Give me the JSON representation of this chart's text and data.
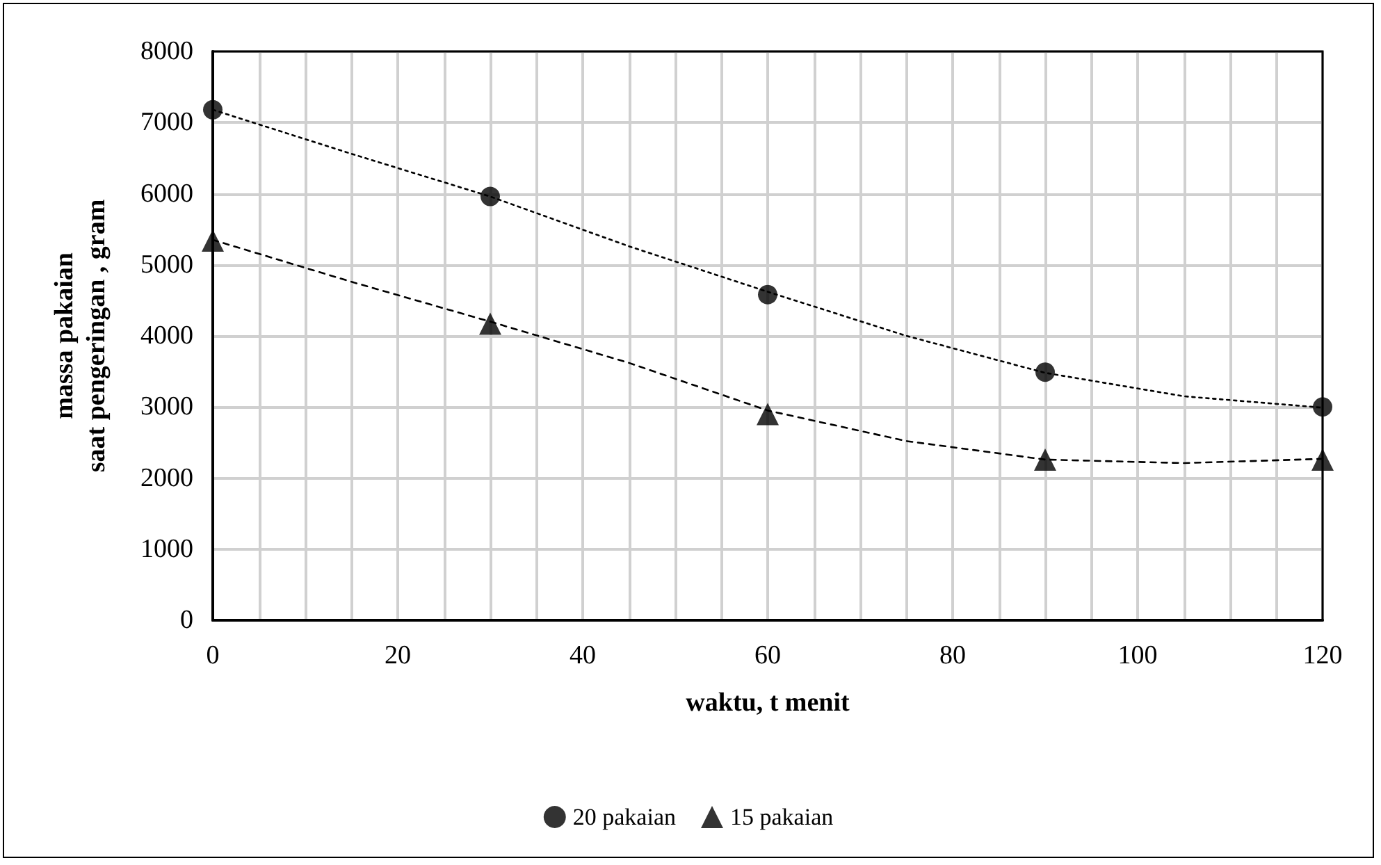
{
  "chart_data": {
    "type": "scatter",
    "xlabel": "waktu, t menit",
    "ylabel": "massa pakaian\nsaat pengeringan , gram",
    "x": [
      0,
      30,
      60,
      90,
      120
    ],
    "series": [
      {
        "name": "20 pakaian",
        "color": "#000000",
        "marker": "circle",
        "values": [
          7180,
          5960,
          4580,
          3490,
          3000
        ]
      },
      {
        "name": "15 pakaian",
        "color": "#000000",
        "marker": "triangle",
        "values": [
          5340,
          4170,
          2900,
          2260,
          2260
        ]
      },
      {
        "type": "line",
        "color": "#000000",
        "line_style": "dotted",
        "marker": "none",
        "x": [
          0,
          15,
          30,
          45,
          60,
          75,
          90,
          105,
          120
        ],
        "values": [
          7180,
          6560,
          5960,
          5260,
          4620,
          4000,
          3480,
          3150,
          2990
        ]
      },
      {
        "type": "line",
        "color": "#000000",
        "line_style": "dashed",
        "marker": "none",
        "x": [
          0,
          15,
          30,
          45,
          60,
          75,
          90,
          105,
          120
        ],
        "values": [
          5350,
          4760,
          4200,
          3620,
          2950,
          2520,
          2260,
          2210,
          2270
        ]
      }
    ],
    "xlim": [
      0,
      120
    ],
    "xticks": [
      0,
      {
        "value": 5,
        "label": null
      },
      {
        "value": 10,
        "label": null
      },
      {
        "value": 15,
        "label": null
      },
      20,
      {
        "value": 25,
        "label": null
      },
      {
        "value": 30,
        "label": null
      },
      {
        "value": 35,
        "label": null
      },
      40,
      {
        "value": 45,
        "label": null
      },
      {
        "value": 50,
        "label": null
      },
      {
        "value": 55,
        "label": null
      },
      60,
      {
        "value": 65,
        "label": null
      },
      {
        "value": 70,
        "label": null
      },
      {
        "value": 75,
        "label": null
      },
      80,
      {
        "value": 85,
        "label": null
      },
      {
        "value": 90,
        "label": null
      },
      {
        "value": 95,
        "label": null
      },
      100,
      {
        "value": 105,
        "label": null
      },
      {
        "value": 110,
        "label": null
      },
      {
        "value": 115,
        "label": null
      },
      120
    ],
    "ylim": [
      0,
      8000
    ],
    "yticks": [
      0,
      1000,
      2000,
      3000,
      4000,
      5000,
      6000,
      7000,
      8000
    ],
    "grid": true,
    "legend": "bottom"
  }
}
